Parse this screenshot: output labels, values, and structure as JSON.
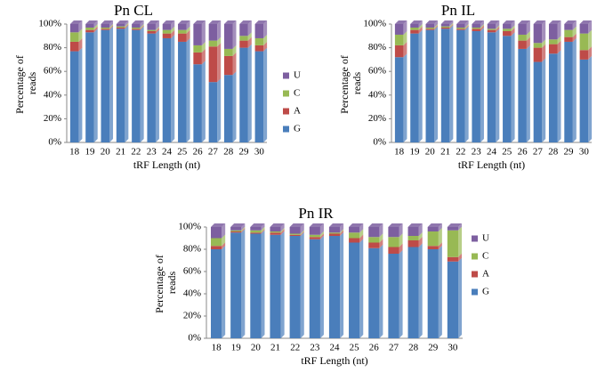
{
  "chart_data": [
    {
      "type": "bar",
      "stacked": true,
      "title": "Pn CL",
      "xlabel": "tRF Length (nt)",
      "ylabel": "Percentage of reads",
      "legend": true,
      "categories": [
        "18",
        "19",
        "20",
        "21",
        "22",
        "23",
        "24",
        "25",
        "26",
        "27",
        "28",
        "29",
        "30"
      ],
      "series": [
        {
          "name": "G",
          "color": "#4a7ebb",
          "values": [
            77,
            93,
            95,
            96,
            95,
            92,
            88,
            85,
            66,
            51,
            57,
            80,
            77
          ]
        },
        {
          "name": "A",
          "color": "#be4b48",
          "values": [
            8,
            2,
            1,
            1,
            1,
            2,
            4,
            7,
            10,
            30,
            16,
            6,
            5
          ]
        },
        {
          "name": "C",
          "color": "#98b954",
          "values": [
            8,
            2,
            1,
            1,
            1,
            1,
            3,
            3,
            6,
            5,
            6,
            4,
            6
          ]
        },
        {
          "name": "U",
          "color": "#7d5fa0",
          "values": [
            7,
            3,
            3,
            2,
            3,
            5,
            5,
            5,
            18,
            14,
            21,
            10,
            12
          ]
        }
      ],
      "ylim": [
        0,
        100
      ],
      "yticks": [
        {
          "value": 0,
          "label": "0%"
        },
        {
          "value": 20,
          "label": "20%"
        },
        {
          "value": 40,
          "label": "40%"
        },
        {
          "value": 60,
          "label": "60%"
        },
        {
          "value": 80,
          "label": "80%"
        },
        {
          "value": 100,
          "label": "100%"
        }
      ]
    },
    {
      "type": "bar",
      "stacked": true,
      "title": "Pn IL",
      "xlabel": "tRF Length (nt)",
      "ylabel": "Percentage of reads",
      "legend": false,
      "categories": [
        "18",
        "19",
        "20",
        "21",
        "22",
        "23",
        "24",
        "25",
        "26",
        "27",
        "28",
        "29",
        "30"
      ],
      "series": [
        {
          "name": "G",
          "color": "#4a7ebb",
          "values": [
            72,
            92,
            95,
            96,
            95,
            94,
            93,
            90,
            79,
            68,
            75,
            85,
            70
          ]
        },
        {
          "name": "A",
          "color": "#be4b48",
          "values": [
            10,
            3,
            1,
            1,
            1,
            2,
            2,
            4,
            7,
            12,
            8,
            4,
            8
          ]
        },
        {
          "name": "C",
          "color": "#98b954",
          "values": [
            9,
            2,
            1,
            1,
            1,
            1,
            1,
            2,
            5,
            4,
            4,
            6,
            14
          ]
        },
        {
          "name": "U",
          "color": "#7d5fa0",
          "values": [
            9,
            3,
            3,
            2,
            3,
            3,
            4,
            4,
            9,
            16,
            13,
            5,
            8
          ]
        }
      ],
      "ylim": [
        0,
        100
      ],
      "yticks": [
        {
          "value": 0,
          "label": "0%"
        },
        {
          "value": 20,
          "label": "20%"
        },
        {
          "value": 40,
          "label": "40%"
        },
        {
          "value": 60,
          "label": "60%"
        },
        {
          "value": 80,
          "label": "80%"
        },
        {
          "value": 100,
          "label": "100%"
        }
      ]
    },
    {
      "type": "bar",
      "stacked": true,
      "title": "Pn IR",
      "xlabel": "tRF Length (nt)",
      "ylabel": "Percentage of reads",
      "legend": true,
      "categories": [
        "18",
        "19",
        "20",
        "21",
        "22",
        "23",
        "24",
        "25",
        "26",
        "27",
        "28",
        "29",
        "30"
      ],
      "series": [
        {
          "name": "G",
          "color": "#4a7ebb",
          "values": [
            80,
            95,
            94,
            93,
            92,
            89,
            92,
            86,
            81,
            76,
            82,
            80,
            69
          ]
        },
        {
          "name": "A",
          "color": "#be4b48",
          "values": [
            3,
            1,
            1,
            2,
            1,
            2,
            2,
            4,
            5,
            6,
            6,
            3,
            4
          ]
        },
        {
          "name": "C",
          "color": "#98b954",
          "values": [
            7,
            1,
            2,
            1,
            1,
            2,
            1,
            5,
            5,
            9,
            4,
            13,
            24
          ]
        },
        {
          "name": "U",
          "color": "#7d5fa0",
          "values": [
            10,
            3,
            3,
            4,
            6,
            7,
            5,
            5,
            9,
            9,
            8,
            4,
            3
          ]
        }
      ],
      "ylim": [
        0,
        100
      ],
      "yticks": [
        {
          "value": 0,
          "label": "0%"
        },
        {
          "value": 20,
          "label": "20%"
        },
        {
          "value": 40,
          "label": "40%"
        },
        {
          "value": 60,
          "label": "60%"
        },
        {
          "value": 80,
          "label": "80%"
        },
        {
          "value": 100,
          "label": "100%"
        }
      ]
    }
  ]
}
